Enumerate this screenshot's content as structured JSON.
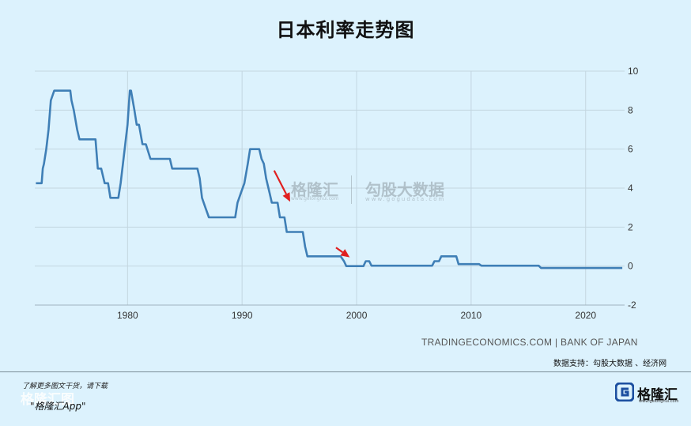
{
  "chart_data": {
    "type": "line",
    "title": "日本利率走势图",
    "xlabel": "",
    "ylabel": "",
    "xlim": [
      1971.9,
      2023.4
    ],
    "ylim": [
      -2,
      10
    ],
    "x_ticks": [
      1980,
      1990,
      2000,
      2010,
      2020
    ],
    "x_tick_labels": [
      "1980",
      "1990",
      "2000",
      "2010",
      "2020"
    ],
    "y_ticks": [
      10,
      8,
      6,
      4,
      2,
      0,
      -2
    ],
    "y_tick_labels": [
      "10",
      "8",
      "6",
      "4",
      "2",
      "0",
      "-2"
    ],
    "grid": true,
    "series_color": "#3f7fb6",
    "series": [
      {
        "x": [
          1972.0,
          1972.5,
          1972.6,
          1972.7,
          1972.9,
          1973.1,
          1973.3,
          1973.6,
          1973.7,
          1975.0,
          1975.1,
          1975.3,
          1975.6,
          1975.8,
          1977.2,
          1977.4,
          1977.7,
          1978.0,
          1978.3,
          1978.5,
          1979.2,
          1979.4,
          1979.6,
          1979.8,
          1980.0,
          1980.2,
          1980.3,
          1980.6,
          1980.8,
          1981.0,
          1981.3,
          1981.6,
          1982.0,
          1982.2,
          1983.7,
          1983.9,
          1986.1,
          1986.3,
          1986.5,
          1986.8,
          1987.1,
          1987.3,
          1989.4,
          1989.6,
          1989.9,
          1990.2,
          1990.5,
          1990.7,
          1991.5,
          1991.7,
          1991.9,
          1992.1,
          1992.4,
          1992.6,
          1993.1,
          1993.3,
          1993.7,
          1993.9,
          1995.3,
          1995.5,
          1995.7,
          1998.6,
          1998.9,
          1999.1,
          1999.3,
          2000.6,
          2000.8,
          2001.1,
          2001.3,
          2006.6,
          2006.8,
          2007.2,
          2007.4,
          2008.7,
          2008.9,
          2010.7,
          2010.9,
          2015.9,
          2016.1,
          2023.2
        ],
        "y": [
          4.25,
          4.25,
          5.0,
          5.25,
          6.0,
          7.0,
          8.5,
          9.0,
          9.0,
          9.0,
          8.5,
          8.0,
          7.0,
          6.5,
          6.5,
          5.0,
          5.0,
          4.25,
          4.25,
          3.5,
          3.5,
          4.25,
          5.25,
          6.25,
          7.25,
          9.0,
          9.0,
          8.0,
          7.25,
          7.25,
          6.25,
          6.25,
          5.5,
          5.5,
          5.5,
          5.0,
          5.0,
          4.5,
          3.5,
          3.0,
          2.5,
          2.5,
          2.5,
          3.25,
          3.75,
          4.25,
          5.25,
          6.0,
          6.0,
          5.5,
          5.25,
          4.5,
          3.75,
          3.25,
          3.25,
          2.5,
          2.5,
          1.75,
          1.75,
          1.0,
          0.5,
          0.5,
          0.25,
          0.0,
          0.0,
          0.0,
          0.25,
          0.25,
          0.02,
          0.02,
          0.25,
          0.25,
          0.5,
          0.5,
          0.1,
          0.1,
          0.02,
          0.02,
          -0.1,
          -0.1
        ]
      }
    ],
    "annotations": [
      {
        "type": "arrow",
        "color": "#e02020",
        "from": [
          1992.8,
          4.9
        ],
        "to": [
          1994.2,
          3.3
        ]
      },
      {
        "type": "arrow",
        "color": "#e02020",
        "from": [
          1998.2,
          0.95
        ],
        "to": [
          1999.4,
          0.45
        ]
      }
    ]
  },
  "source_text": "TRADINGECONOMICS.COM | BANK OF JAPAN",
  "support_text": "数据支持：勾股大数据 、经济网",
  "watermark": {
    "left_name": "格隆汇",
    "left_url": "www.gelonghui.com",
    "right_name": "勾股大数据",
    "right_url": "www.gogudata.com"
  },
  "footer": {
    "note": "了解更多图文干货，请下载",
    "big": "格隆汇图",
    "app": "\"格隆汇App\"",
    "brand_name": "格隆汇",
    "brand_url": "www.gelonghui.com",
    "brand_color": "#1c4fa0"
  }
}
